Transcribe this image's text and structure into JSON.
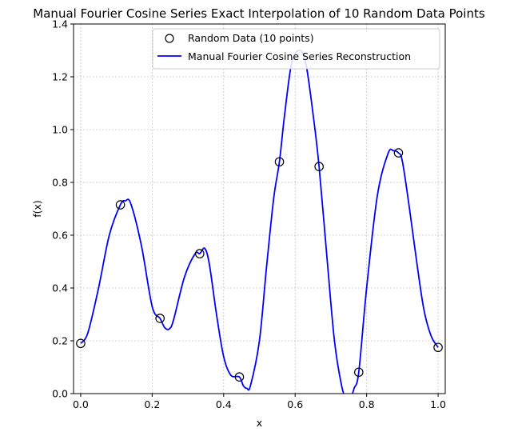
{
  "chart_data": {
    "type": "line",
    "title": "Manual Fourier Cosine Series Exact Interpolation of 10 Random Data Points",
    "xlabel": "x",
    "ylabel": "f(x)",
    "xlim": [
      -0.02,
      1.02
    ],
    "ylim": [
      0,
      1.4
    ],
    "xticks": [
      "0.0",
      "0.2",
      "0.4",
      "0.6",
      "0.8",
      "1.0"
    ],
    "yticks": [
      "0.0",
      "0.2",
      "0.4",
      "0.6",
      "0.8",
      "1.0",
      "1.2",
      "1.4"
    ],
    "grid": true,
    "legend_position": "top-right",
    "series": [
      {
        "name": "Random Data (10 points)",
        "kind": "scatter",
        "marker": "open-circle",
        "color": "#000000",
        "x": [
          0.0,
          0.111,
          0.222,
          0.333,
          0.444,
          0.556,
          0.667,
          0.778,
          0.889,
          1.0
        ],
        "y": [
          0.19,
          0.715,
          0.285,
          0.53,
          0.063,
          0.878,
          0.86,
          0.081,
          0.912,
          0.175
        ]
      },
      {
        "name": "Manual Fourier Cosine Series Reconstruction",
        "kind": "line",
        "color": "#0000ff",
        "x": [
          0.0,
          0.02,
          0.05,
          0.08,
          0.111,
          0.125,
          0.14,
          0.17,
          0.2,
          0.222,
          0.235,
          0.248,
          0.26,
          0.29,
          0.32,
          0.333,
          0.347,
          0.36,
          0.38,
          0.4,
          0.42,
          0.444,
          0.455,
          0.465,
          0.475,
          0.5,
          0.52,
          0.54,
          0.556,
          0.57,
          0.59,
          0.612,
          0.63,
          0.65,
          0.667,
          0.69,
          0.71,
          0.73,
          0.745,
          0.755,
          0.765,
          0.778,
          0.8,
          0.83,
          0.86,
          0.875,
          0.889,
          0.9,
          0.92,
          0.94,
          0.96,
          0.98,
          1.0
        ],
        "y": [
          0.19,
          0.23,
          0.4,
          0.6,
          0.715,
          0.73,
          0.72,
          0.56,
          0.33,
          0.285,
          0.25,
          0.245,
          0.28,
          0.44,
          0.53,
          0.53,
          0.55,
          0.49,
          0.3,
          0.14,
          0.07,
          0.063,
          0.03,
          0.02,
          0.03,
          0.2,
          0.48,
          0.74,
          0.878,
          1.05,
          1.25,
          1.3,
          1.25,
          1.06,
          0.86,
          0.5,
          0.2,
          0.03,
          -0.03,
          -0.02,
          0.02,
          0.081,
          0.4,
          0.75,
          0.91,
          0.92,
          0.912,
          0.88,
          0.7,
          0.5,
          0.32,
          0.22,
          0.175
        ]
      }
    ]
  }
}
